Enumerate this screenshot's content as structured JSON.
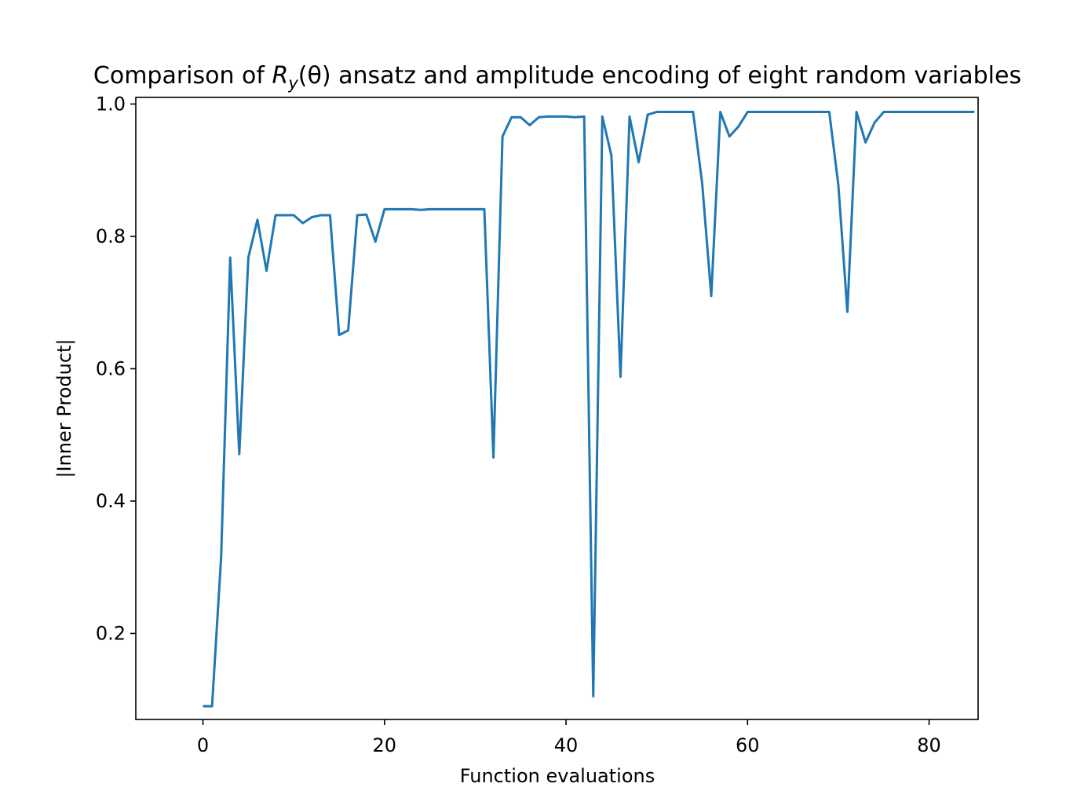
{
  "chart_data": {
    "type": "line",
    "title": "Comparison of R_y(θ) ansatz and amplitude encoding of eight random variables",
    "title_parts": {
      "prefix": "Comparison of ",
      "math_R": "R",
      "math_sub": "y",
      "math_arg": "(θ)",
      "suffix": " ansatz and amplitude encoding of eight random variables"
    },
    "xlabel": "Function evaluations",
    "ylabel": "|Inner Product|",
    "xlim": [
      -7.4,
      85.4
    ],
    "ylim": [
      0.07,
      1.01
    ],
    "xticks": [
      0,
      20,
      40,
      60,
      80
    ],
    "xtick_labels": [
      "0",
      "20",
      "40",
      "60",
      "80"
    ],
    "yticks": [
      0.2,
      0.4,
      0.6,
      0.8,
      1.0
    ],
    "ytick_labels": [
      "0.2",
      "0.4",
      "0.6",
      "0.8",
      "1.0"
    ],
    "grid": false,
    "line_color": "#1f77b4",
    "series": [
      {
        "x": [
          0,
          1,
          2,
          3,
          4,
          5,
          6,
          7,
          8,
          9,
          10,
          11,
          12,
          13,
          14,
          15,
          16,
          17,
          18,
          19,
          20,
          21,
          22,
          23,
          24,
          25,
          26,
          27,
          28,
          29,
          30,
          31,
          32,
          33,
          34,
          35,
          36,
          37,
          38,
          39,
          40,
          41,
          42,
          43,
          44,
          45,
          46,
          47,
          48,
          49,
          50,
          51,
          52,
          53,
          54,
          55,
          56,
          57,
          58,
          59,
          60,
          61,
          62,
          63,
          64,
          65,
          66,
          67,
          68,
          69,
          70,
          71,
          72,
          73,
          74,
          75,
          76,
          77,
          78,
          79,
          80,
          81,
          82,
          83,
          84,
          85
        ],
        "values": [
          0.09,
          0.09,
          0.315,
          0.768,
          0.471,
          0.768,
          0.825,
          0.748,
          0.832,
          0.832,
          0.832,
          0.82,
          0.829,
          0.832,
          0.832,
          0.651,
          0.658,
          0.832,
          0.833,
          0.792,
          0.841,
          0.841,
          0.841,
          0.841,
          0.84,
          0.841,
          0.841,
          0.841,
          0.841,
          0.841,
          0.841,
          0.841,
          0.466,
          0.951,
          0.98,
          0.98,
          0.968,
          0.98,
          0.981,
          0.981,
          0.981,
          0.98,
          0.981,
          0.105,
          0.981,
          0.922,
          0.588,
          0.981,
          0.912,
          0.984,
          0.988,
          0.988,
          0.988,
          0.988,
          0.988,
          0.88,
          0.71,
          0.988,
          0.951,
          0.966,
          0.988,
          0.988,
          0.988,
          0.988,
          0.988,
          0.988,
          0.988,
          0.988,
          0.988,
          0.988,
          0.878,
          0.686,
          0.988,
          0.942,
          0.972,
          0.988,
          0.988,
          0.988,
          0.988,
          0.988,
          0.988,
          0.988,
          0.988,
          0.988,
          0.988,
          0.988
        ]
      }
    ]
  }
}
